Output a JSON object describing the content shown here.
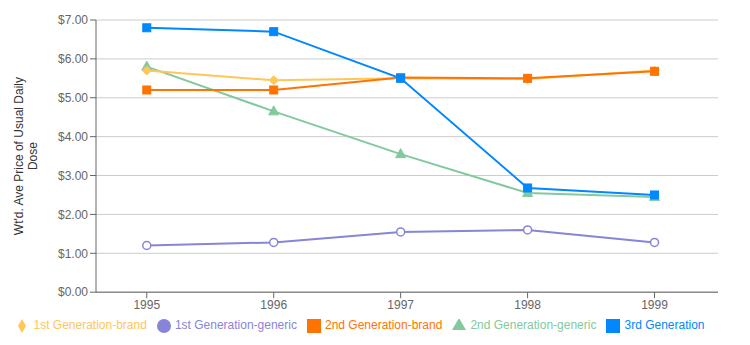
{
  "chart_data": {
    "type": "line",
    "x": [
      1995,
      1996,
      1997,
      1998,
      1999
    ],
    "series": [
      {
        "name": "1st Generation-generic",
        "color": "#8884d8",
        "marker": "circle",
        "values": [
          1.2,
          1.28,
          1.55,
          1.6,
          1.28
        ]
      },
      {
        "name": "2nd Generation-generic",
        "color": "#82ca9d",
        "marker": "triangle",
        "values": [
          5.8,
          4.65,
          3.55,
          2.55,
          2.45
        ]
      },
      {
        "name": "1st Generation-brand",
        "color": "#ffc658",
        "marker": "diamond",
        "values": [
          5.7,
          5.45,
          5.5,
          5.48,
          5.7
        ]
      },
      {
        "name": "2nd Generation-brand",
        "color": "#ff7300",
        "marker": "square",
        "values": [
          5.2,
          5.2,
          5.52,
          5.5,
          5.68
        ]
      },
      {
        "name": "3rd Generation",
        "color": "#0088fe",
        "marker": "square",
        "values": [
          6.8,
          6.7,
          5.5,
          2.68,
          2.5
        ]
      }
    ],
    "y_label": [
      "Wt'd. Ave Price of Usual Daily",
      "Dose"
    ],
    "xlim": [
      1994.6,
      1999.5
    ],
    "xticks": [
      1995,
      1996,
      1997,
      1998,
      1999
    ],
    "ylim": [
      0.0,
      7.0
    ],
    "yticks": [
      {
        "value": 0.0,
        "label": "$0.00"
      },
      {
        "value": 1.0,
        "label": "$1.00"
      },
      {
        "value": 2.0,
        "label": "$2.00"
      },
      {
        "value": 3.0,
        "label": "$3.00"
      },
      {
        "value": 4.0,
        "label": "$4.00"
      },
      {
        "value": 5.0,
        "label": "$5.00"
      },
      {
        "value": 6.0,
        "label": "$6.00"
      },
      {
        "value": 7.0,
        "label": "$7.00"
      }
    ],
    "grid": true,
    "legend": "bottom"
  }
}
